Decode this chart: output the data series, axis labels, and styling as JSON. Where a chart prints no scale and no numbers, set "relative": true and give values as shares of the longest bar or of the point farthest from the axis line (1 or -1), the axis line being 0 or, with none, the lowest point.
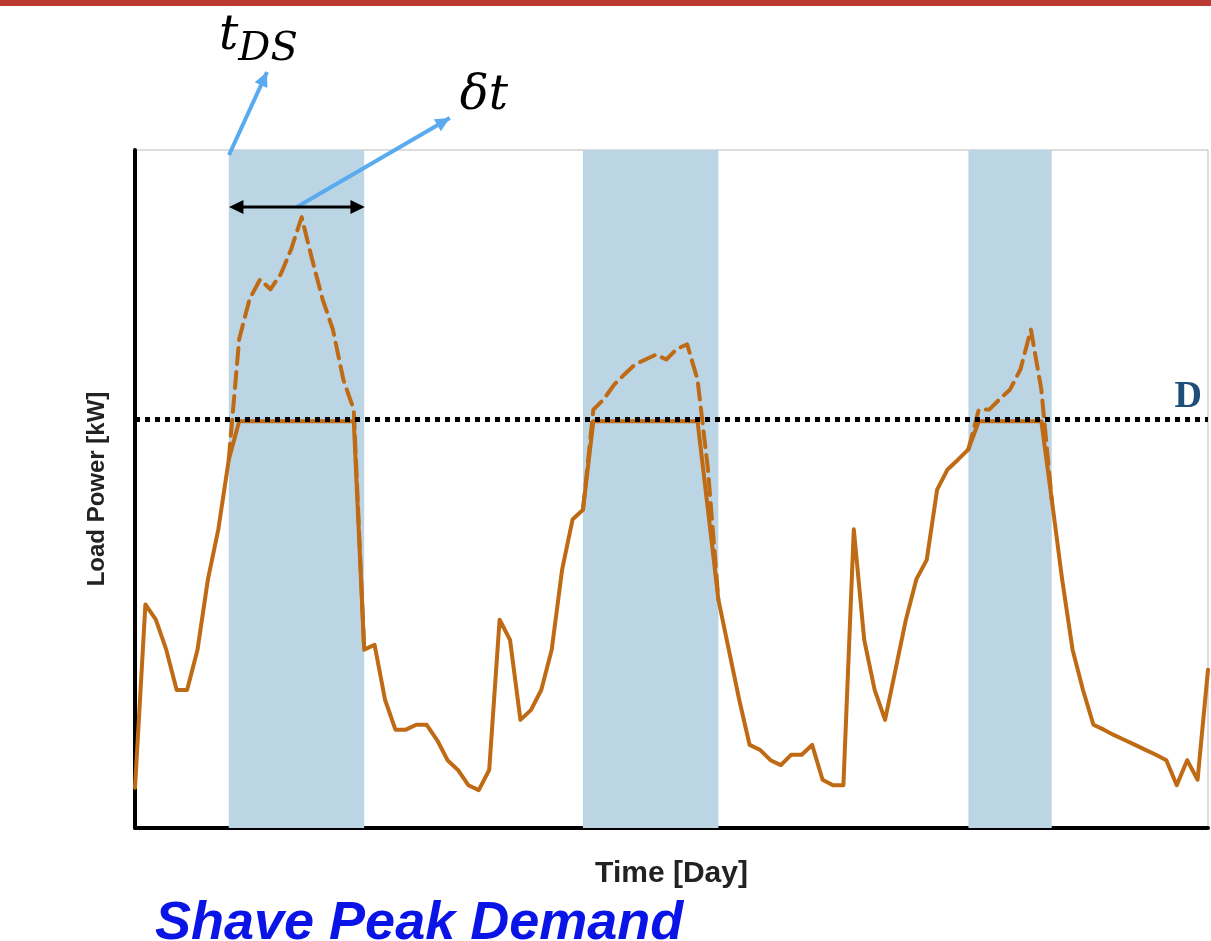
{
  "chart_data": {
    "type": "line",
    "subtitle": "Shave Peak Demand",
    "xlabel": "Time [Day]",
    "ylabel": "Load Power [kW]",
    "relative": true,
    "grid": false,
    "marker": "none",
    "annotations": [
      "t$_{DS}$",
      "δt"
    ],
    "categories": [
      null,
      null,
      null,
      null,
      null,
      null,
      null,
      null,
      null,
      null,
      null,
      null,
      null,
      null,
      null,
      null,
      null,
      null,
      null,
      null,
      null,
      null,
      null,
      null,
      null,
      null,
      null,
      null,
      null,
      null,
      null,
      null,
      null,
      null,
      null,
      null,
      null,
      null,
      null,
      null,
      null,
      null,
      null,
      null,
      null,
      null,
      null,
      null,
      null,
      null,
      null,
      null,
      null,
      null,
      null,
      null,
      null,
      null,
      null,
      null,
      null,
      null,
      null,
      null,
      null,
      null,
      null,
      null,
      null,
      null,
      null,
      null,
      null,
      null,
      null,
      null,
      null,
      null,
      null,
      null,
      null,
      null,
      null,
      null,
      null,
      null,
      null,
      null,
      null,
      null,
      null,
      null,
      null,
      null,
      null,
      null,
      null,
      null,
      null,
      null,
      null,
      null,
      null,
      null
    ],
    "series": [
      {
        "color": "#bf6a14",
        "line_style": "dashed",
        "values": [
          null,
          null,
          null,
          null,
          null,
          null,
          null,
          null,
          null,
          0.603,
          0.8,
          0.866,
          0.898,
          0.882,
          0.907,
          0.948,
          1,
          0.931,
          0.866,
          0.816,
          0.734,
          0.685,
          0.292,
          null,
          null,
          null,
          null,
          null,
          null,
          null,
          null,
          null,
          null,
          null,
          null,
          null,
          null,
          null,
          null,
          null,
          null,
          null,
          null,
          0.521,
          0.685,
          0.702,
          0.726,
          0.743,
          0.759,
          0.767,
          0.775,
          0.767,
          0.784,
          0.792,
          0.734,
          0.587,
          0.374,
          null,
          null,
          null,
          null,
          null,
          null,
          null,
          null,
          null,
          null,
          null,
          null,
          null,
          null,
          null,
          null,
          null,
          null,
          null,
          null,
          null,
          null,
          null,
          0.62,
          0.685,
          0.685,
          0.702,
          0.718,
          0.751,
          0.816,
          0.718,
          0.538,
          null,
          null,
          null,
          null,
          null,
          null,
          null,
          null,
          null,
          null,
          null,
          null,
          null,
          null,
          null
        ]
      },
      {
        "color": "#bf6a14",
        "line_style": "solid",
        "values": [
          0.066,
          0.366,
          0.341,
          0.292,
          0.226,
          0.226,
          0.292,
          0.407,
          0.489,
          0.603,
          0.666,
          0.666,
          0.666,
          0.666,
          0.666,
          0.666,
          0.666,
          0.666,
          0.666,
          0.666,
          0.666,
          0.666,
          0.292,
          0.3,
          0.21,
          0.161,
          0.161,
          0.169,
          0.169,
          0.144,
          0.111,
          0.095,
          0.07,
          0.062,
          0.095,
          0.341,
          0.308,
          0.177,
          0.193,
          0.226,
          0.292,
          0.423,
          0.505,
          0.521,
          0.666,
          0.666,
          0.666,
          0.666,
          0.666,
          0.666,
          0.666,
          0.666,
          0.666,
          0.666,
          0.666,
          0.521,
          0.374,
          0.292,
          0.21,
          0.136,
          0.128,
          0.111,
          0.103,
          0.12,
          0.12,
          0.136,
          0.079,
          0.07,
          0.07,
          0.489,
          0.308,
          0.226,
          0.177,
          0.259,
          0.341,
          0.407,
          0.439,
          0.554,
          0.587,
          0.603,
          0.62,
          0.666,
          0.666,
          0.666,
          0.666,
          0.666,
          0.666,
          0.666,
          0.538,
          0.407,
          0.292,
          0.226,
          0.169,
          0.161,
          0.152,
          0.144,
          0.136,
          0.128,
          0.12,
          0.111,
          0.07,
          0.111,
          0.079,
          0.259
        ]
      }
    ],
    "ref_lines": [
      {
        "axis": "y",
        "value": 0.666,
        "label": "D",
        "color": "#000000",
        "line_style": "dotted"
      }
    ]
  }
}
